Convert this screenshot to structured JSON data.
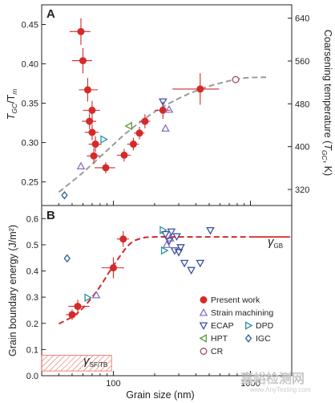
{
  "colors": {
    "present": "#d42a2a",
    "strain": "#8a6fbf",
    "ecap": "#3d4fa0",
    "hpt": "#5a9a3a",
    "dpd": "#2b8fa0",
    "igc": "#2c5d9a",
    "cr": "#a0505a",
    "trend_a": "#9b9b9b",
    "trend_b": "#d42a2a",
    "hatch": "#e86a5a"
  },
  "chart_data": [
    {
      "panel": "A",
      "type": "scatter",
      "xscale": "log",
      "xlim": [
        30,
        2000
      ],
      "ylim": [
        0.22,
        0.475
      ],
      "y2lim": [
        290,
        665
      ],
      "yticks": [
        "0.25",
        "0.30",
        "0.35",
        "0.40",
        "0.45"
      ],
      "y2ticks": [
        "320",
        "400",
        "480",
        "560",
        "640"
      ],
      "ylabel_main": "T",
      "ylabel_sub1": "GC",
      "ylabel_mid": "/T",
      "ylabel_sub2": "m",
      "y2label_main": "Coarsening temperature (",
      "y2label_t": "T",
      "y2label_sub": "GC",
      "y2label_end": ", K)",
      "series": [
        {
          "name": "Present work",
          "marker": "circle",
          "points": [
            {
              "x": 58,
              "y": 0.441,
              "xerr": [
                10,
                10
              ],
              "yerr": 0.017
            },
            {
              "x": 60,
              "y": 0.404,
              "xerr": [
                10,
                10
              ],
              "yerr": 0.016
            },
            {
              "x": 65,
              "y": 0.367,
              "xerr": [
                9,
                12
              ],
              "yerr": 0.015
            },
            {
              "x": 70,
              "y": 0.341,
              "xerr": [
                10,
                10
              ],
              "yerr": 0.012
            },
            {
              "x": 67,
              "y": 0.327,
              "xerr": [
                8,
                8
              ],
              "yerr": 0.01
            },
            {
              "x": 70,
              "y": 0.313,
              "xerr": [
                8,
                8
              ],
              "yerr": 0.01
            },
            {
              "x": 74,
              "y": 0.298,
              "xerr": [
                8,
                8
              ],
              "yerr": 0.01
            },
            {
              "x": 72,
              "y": 0.283,
              "xerr": [
                8,
                8
              ],
              "yerr": 0.01
            },
            {
              "x": 88,
              "y": 0.268,
              "xerr": [
                15,
                15
              ],
              "yerr": 0.007
            },
            {
              "x": 120,
              "y": 0.284,
              "xerr": [
                14,
                14
              ],
              "yerr": 0.008
            },
            {
              "x": 140,
              "y": 0.298,
              "xerr": [
                14,
                14
              ],
              "yerr": 0.008
            },
            {
              "x": 155,
              "y": 0.312,
              "xerr": [
                14,
                14
              ],
              "yerr": 0.008
            },
            {
              "x": 170,
              "y": 0.327,
              "xerr": [
                16,
                16
              ],
              "yerr": 0.009
            },
            {
              "x": 230,
              "y": 0.341,
              "xerr": [
                30,
                30
              ],
              "yerr": 0.011
            },
            {
              "x": 430,
              "y": 0.368,
              "xerr": [
                160,
                160
              ],
              "yerr": 0.02
            }
          ]
        },
        {
          "name": "Strain machining",
          "marker": "triangle-up",
          "points": [
            {
              "x": 58,
              "y": 0.27
            },
            {
              "x": 240,
              "y": 0.318
            },
            {
              "x": 255,
              "y": 0.342
            }
          ]
        },
        {
          "name": "ECAP",
          "marker": "triangle-down",
          "points": [
            {
              "x": 230,
              "y": 0.352
            }
          ]
        },
        {
          "name": "HPT",
          "marker": "triangle-left",
          "points": [
            {
              "x": 130,
              "y": 0.321
            }
          ]
        },
        {
          "name": "DPD",
          "marker": "triangle-right",
          "points": [
            {
              "x": 85,
              "y": 0.304
            }
          ]
        },
        {
          "name": "IGC",
          "marker": "diamond",
          "points": [
            {
              "x": 44,
              "y": 0.233
            }
          ]
        },
        {
          "name": "CR",
          "marker": "circle-open",
          "points": [
            {
              "x": 780,
              "y": 0.38
            }
          ]
        }
      ],
      "trend": {
        "x": [
          40,
          60,
          90,
          130,
          200,
          300,
          450,
          650,
          900,
          1300
        ],
        "y": [
          0.237,
          0.262,
          0.29,
          0.315,
          0.339,
          0.356,
          0.369,
          0.377,
          0.382,
          0.383
        ]
      }
    },
    {
      "panel": "B",
      "type": "scatter",
      "xscale": "log",
      "xlim": [
        30,
        2000
      ],
      "ylim": [
        0,
        0.65
      ],
      "xticks": [
        "100",
        "1000"
      ],
      "yticks": [
        "0.0",
        "0.1",
        "0.2",
        "0.3",
        "0.4",
        "0.5",
        "0.6"
      ],
      "xlabel": "Grain size (nm)",
      "ylabel": "Grain boundary energy (J/m²)",
      "series": [
        {
          "name": "Present work",
          "marker": "circle",
          "points": [
            {
              "x": 50,
              "y": 0.233,
              "xerr": [
                5,
                5
              ],
              "yerr": 0.02
            },
            {
              "x": 55,
              "y": 0.265,
              "xerr": [
                8,
                12
              ],
              "yerr": 0.025
            },
            {
              "x": 100,
              "y": 0.412,
              "xerr": [
                18,
                20
              ],
              "yerr": 0.04
            },
            {
              "x": 118,
              "y": 0.522,
              "xerr": [
                12,
                12
              ],
              "yerr": 0.03
            }
          ]
        },
        {
          "name": "DPD",
          "marker": "triangle-right",
          "points": [
            {
              "x": 65,
              "y": 0.298
            },
            {
              "x": 230,
              "y": 0.556
            },
            {
              "x": 235,
              "y": 0.478
            }
          ]
        },
        {
          "name": "Strain machining",
          "marker": "triangle-up",
          "points": [
            {
              "x": 75,
              "y": 0.308
            },
            {
              "x": 245,
              "y": 0.5
            },
            {
              "x": 260,
              "y": 0.525
            }
          ]
        },
        {
          "name": "ECAP",
          "marker": "triangle-down",
          "points": [
            {
              "x": 240,
              "y": 0.54
            },
            {
              "x": 255,
              "y": 0.515
            },
            {
              "x": 265,
              "y": 0.55
            },
            {
              "x": 290,
              "y": 0.532
            },
            {
              "x": 280,
              "y": 0.478
            },
            {
              "x": 300,
              "y": 0.472
            },
            {
              "x": 310,
              "y": 0.49
            },
            {
              "x": 330,
              "y": 0.43
            },
            {
              "x": 370,
              "y": 0.403
            },
            {
              "x": 430,
              "y": 0.43
            },
            {
              "x": 510,
              "y": 0.555
            }
          ]
        },
        {
          "name": "IGC",
          "marker": "diamond",
          "points": [
            {
              "x": 46,
              "y": 0.448
            }
          ]
        }
      ],
      "trend": {
        "x": [
          40,
          55,
          75,
          100,
          130,
          160,
          200,
          300,
          700,
          1000
        ],
        "y": [
          0.198,
          0.24,
          0.32,
          0.42,
          0.5,
          0.525,
          0.53,
          0.53,
          0.53,
          0.53
        ]
      },
      "gb_line": {
        "x": [
          1000,
          1950
        ],
        "y": 0.53
      },
      "sf_band": {
        "x": [
          30,
          97
        ],
        "y": [
          0.018,
          0.078
        ]
      },
      "annotations": {
        "gamma_gb_main": "γ",
        "gamma_gb_sub": "GB",
        "gamma_sf_main": "γ",
        "gamma_sf_sub": "SF/TB"
      },
      "legend": [
        "Present work",
        "Strain machining",
        "ECAP",
        "DPD",
        "HPT",
        "IGC",
        "CR"
      ]
    }
  ],
  "watermark": {
    "main": "嘉峪检测网",
    "sub": "www.AnyTesting.com"
  }
}
